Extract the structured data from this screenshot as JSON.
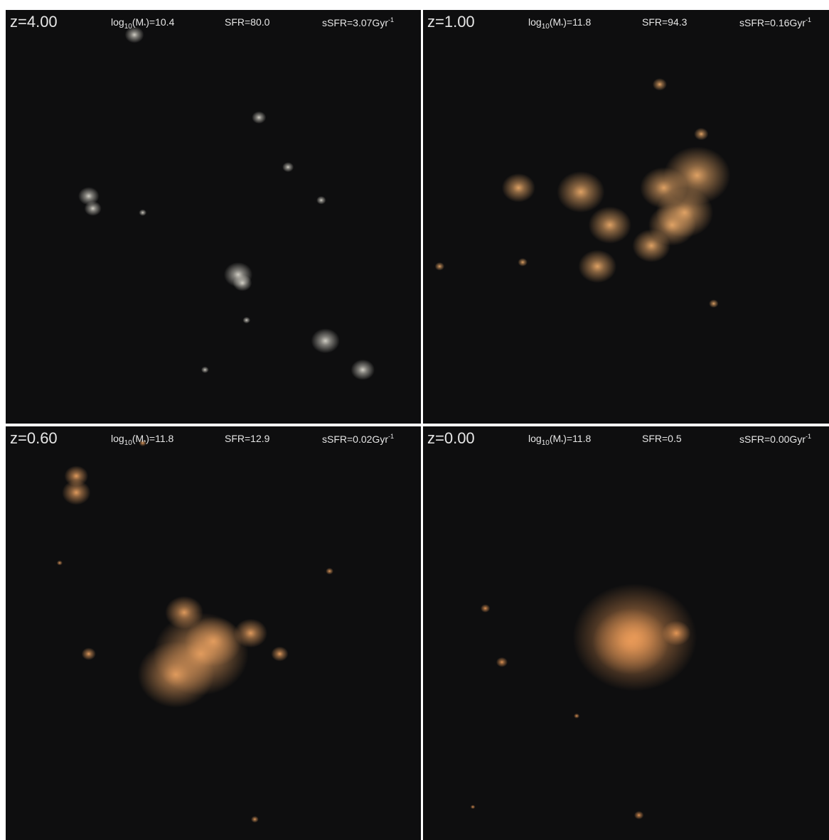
{
  "panels": [
    {
      "id": "z4",
      "redshift": "z=4.00",
      "mass_prefix": "log",
      "mass_sub": "10",
      "mass_arg": "(M",
      "mass_star": "*",
      "mass_value": ")=10.4",
      "sfr": "SFR=80.0",
      "ssfr_text": "sSFR=3.07Gyr",
      "ssfr_exp": "-1",
      "glow_color": "#d9d6cc",
      "blobs": [
        [
          0.31,
          0.06,
          0.02
        ],
        [
          0.2,
          0.45,
          0.022
        ],
        [
          0.21,
          0.48,
          0.018
        ],
        [
          0.56,
          0.64,
          0.03
        ],
        [
          0.57,
          0.66,
          0.02
        ],
        [
          0.68,
          0.38,
          0.012
        ],
        [
          0.77,
          0.8,
          0.03
        ],
        [
          0.86,
          0.87,
          0.025
        ],
        [
          0.61,
          0.26,
          0.015
        ],
        [
          0.76,
          0.46,
          0.01
        ],
        [
          0.33,
          0.49,
          0.008
        ],
        [
          0.48,
          0.87,
          0.008
        ],
        [
          0.58,
          0.75,
          0.008
        ]
      ]
    },
    {
      "id": "z1",
      "redshift": "z=1.00",
      "mass_prefix": "log",
      "mass_sub": "10",
      "mass_arg": "(M",
      "mass_star": "*",
      "mass_value": ")=11.8",
      "sfr": "SFR=94.3",
      "ssfr_text": "sSFR=0.16Gyr",
      "ssfr_exp": "-1",
      "glow_color": "#e8a868",
      "blobs": [
        [
          0.38,
          0.44,
          0.05
        ],
        [
          0.45,
          0.52,
          0.045
        ],
        [
          0.42,
          0.62,
          0.04
        ],
        [
          0.63,
          0.49,
          0.06
        ],
        [
          0.6,
          0.52,
          0.05
        ],
        [
          0.58,
          0.43,
          0.05
        ],
        [
          0.66,
          0.4,
          0.07
        ],
        [
          0.55,
          0.57,
          0.04
        ],
        [
          0.23,
          0.43,
          0.035
        ],
        [
          0.57,
          0.18,
          0.015
        ],
        [
          0.67,
          0.3,
          0.015
        ],
        [
          0.04,
          0.62,
          0.01
        ],
        [
          0.7,
          0.71,
          0.01
        ],
        [
          0.24,
          0.61,
          0.01
        ]
      ]
    },
    {
      "id": "z06",
      "redshift": "z=0.60",
      "mass_prefix": "log",
      "mass_sub": "10",
      "mass_arg": "(M",
      "mass_star": "*",
      "mass_value": ")=11.8",
      "sfr": "SFR=12.9",
      "ssfr_text": "sSFR=0.02Gyr",
      "ssfr_exp": "-1",
      "glow_color": "#e8a060",
      "blobs": [
        [
          0.47,
          0.55,
          0.1
        ],
        [
          0.41,
          0.6,
          0.08
        ],
        [
          0.5,
          0.52,
          0.06
        ],
        [
          0.43,
          0.45,
          0.04
        ],
        [
          0.59,
          0.5,
          0.035
        ],
        [
          0.66,
          0.55,
          0.018
        ],
        [
          0.2,
          0.55,
          0.015
        ],
        [
          0.17,
          0.16,
          0.03
        ],
        [
          0.17,
          0.12,
          0.025
        ],
        [
          0.33,
          0.04,
          0.008
        ],
        [
          0.78,
          0.35,
          0.008
        ],
        [
          0.6,
          0.95,
          0.008
        ],
        [
          0.13,
          0.33,
          0.006
        ]
      ]
    },
    {
      "id": "z0",
      "redshift": "z=0.00",
      "mass_prefix": "log",
      "mass_sub": "10",
      "mass_arg": "(M",
      "mass_star": "*",
      "mass_value": ")=11.8",
      "sfr": "SFR=0.5",
      "ssfr_text": "sSFR=0.00Gyr",
      "ssfr_exp": "-1",
      "glow_color": "#e99a58",
      "blobs": [
        [
          0.51,
          0.51,
          0.13
        ],
        [
          0.5,
          0.52,
          0.08
        ],
        [
          0.61,
          0.5,
          0.03
        ],
        [
          0.15,
          0.44,
          0.01
        ],
        [
          0.19,
          0.57,
          0.012
        ],
        [
          0.52,
          0.94,
          0.01
        ],
        [
          0.37,
          0.7,
          0.006
        ],
        [
          0.12,
          0.92,
          0.005
        ]
      ]
    }
  ]
}
